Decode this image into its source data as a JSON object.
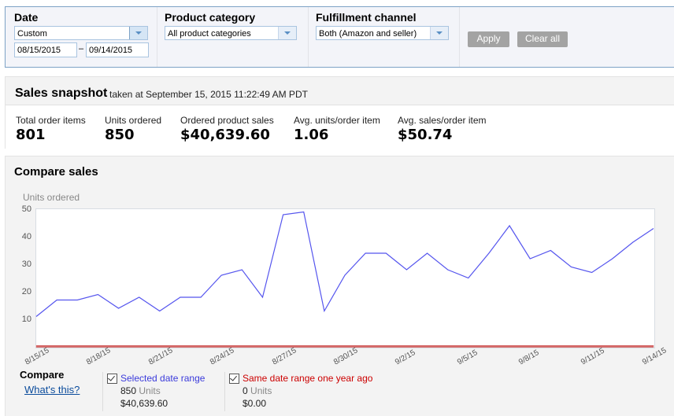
{
  "filters": {
    "date": {
      "label": "Date",
      "selected": "Custom",
      "start": "08/15/2015",
      "separator": "–",
      "end": "09/14/2015"
    },
    "product_category": {
      "label": "Product category",
      "selected": "All product categories"
    },
    "fulfillment_channel": {
      "label": "Fulfillment channel",
      "selected": "Both (Amazon and seller)"
    },
    "apply_label": "Apply",
    "clear_label": "Clear all"
  },
  "snapshot": {
    "title": "Sales snapshot",
    "subtitle": "taken at September 15, 2015 11:22:49 AM PDT",
    "metrics": [
      {
        "label": "Total order items",
        "value": "801"
      },
      {
        "label": "Units ordered",
        "value": "850"
      },
      {
        "label": "Ordered product sales",
        "value": "$40,639.60"
      },
      {
        "label": "Avg. units/order item",
        "value": "1.06"
      },
      {
        "label": "Avg. sales/order item",
        "value": "$50.74"
      }
    ]
  },
  "compare": {
    "title": "Compare sales",
    "label": "Compare",
    "whats_this": "What's this?",
    "legend": [
      {
        "title": "Selected date range",
        "units_value": "850",
        "units_label": "Units",
        "sales": "$40,639.60",
        "color": "#3b3bdb",
        "checked": true
      },
      {
        "title": "Same date range one year ago",
        "units_value": "0",
        "units_label": "Units",
        "sales": "$0.00",
        "color": "#cc0000",
        "checked": true
      }
    ]
  },
  "chart_data": {
    "type": "line",
    "title": "Compare sales",
    "ylabel": "Units ordered",
    "xlabel": "",
    "ylim": [
      0,
      50
    ],
    "yticks": [
      10,
      20,
      30,
      40,
      50
    ],
    "xtick_labels": [
      "8/15/15",
      "8/18/15",
      "8/21/15",
      "8/24/15",
      "8/27/15",
      "8/30/15",
      "9/2/15",
      "9/5/15",
      "9/8/15",
      "9/11/15",
      "9/14/15"
    ],
    "x": [
      "8/15/15",
      "8/16/15",
      "8/17/15",
      "8/18/15",
      "8/19/15",
      "8/20/15",
      "8/21/15",
      "8/22/15",
      "8/23/15",
      "8/24/15",
      "8/25/15",
      "8/26/15",
      "8/27/15",
      "8/28/15",
      "8/29/15",
      "8/30/15",
      "8/31/15",
      "9/1/15",
      "9/2/15",
      "9/3/15",
      "9/4/15",
      "9/5/15",
      "9/6/15",
      "9/7/15",
      "9/8/15",
      "9/9/15",
      "9/10/15",
      "9/11/15",
      "9/12/15",
      "9/13/15",
      "9/14/15"
    ],
    "series": [
      {
        "name": "Selected date range",
        "color": "#5555ee",
        "values": [
          11,
          17,
          17,
          19,
          14,
          18,
          13,
          18,
          18,
          26,
          28,
          18,
          48,
          49,
          13,
          26,
          34,
          34,
          28,
          34,
          28,
          25,
          34,
          44,
          32,
          35,
          29,
          27,
          32,
          38,
          43
        ]
      },
      {
        "name": "Same date range one year ago",
        "color": "#d46a6a",
        "values": [
          0,
          0,
          0,
          0,
          0,
          0,
          0,
          0,
          0,
          0,
          0,
          0,
          0,
          0,
          0,
          0,
          0,
          0,
          0,
          0,
          0,
          0,
          0,
          0,
          0,
          0,
          0,
          0,
          0,
          0,
          0
        ]
      }
    ],
    "grid": false,
    "legend_position": "bottom"
  }
}
